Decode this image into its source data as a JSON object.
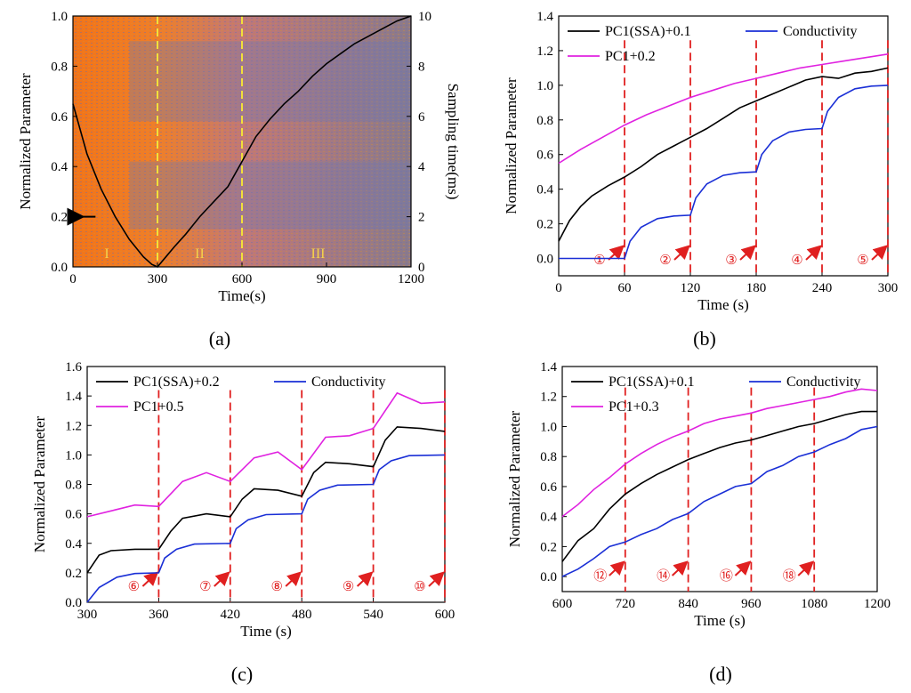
{
  "chart_data": [
    {
      "panel": "(a)",
      "type": "heatmap",
      "xlabel": "Time(s)",
      "ylabel": "Normalized Parameter",
      "y2label": "Sampling time(ms)",
      "xlim": [
        0,
        1200
      ],
      "ylim": [
        0,
        1.0
      ],
      "y2lim": [
        0,
        10
      ],
      "xticks": [
        0,
        300,
        600,
        900,
        1200
      ],
      "yticks": [
        0.0,
        0.2,
        0.4,
        0.6,
        0.8,
        1.0
      ],
      "y2ticks": [
        0,
        2,
        4,
        6,
        8,
        10
      ],
      "dashed_vlines": [
        300,
        600
      ],
      "regions": [
        {
          "label": "I",
          "x": 120
        },
        {
          "label": "II",
          "x": 450
        },
        {
          "label": "III",
          "x": 870
        }
      ],
      "series": [
        {
          "name": "Normalized Parameter",
          "x": [
            0,
            50,
            100,
            150,
            200,
            250,
            280,
            300,
            330,
            360,
            400,
            450,
            500,
            550,
            600,
            650,
            700,
            750,
            800,
            850,
            900,
            950,
            1000,
            1050,
            1100,
            1150,
            1200
          ],
          "values": [
            0.65,
            0.45,
            0.31,
            0.2,
            0.11,
            0.04,
            0.01,
            0.0,
            0.04,
            0.08,
            0.13,
            0.2,
            0.26,
            0.32,
            0.42,
            0.52,
            0.59,
            0.65,
            0.7,
            0.76,
            0.81,
            0.85,
            0.89,
            0.92,
            0.95,
            0.98,
            1.0
          ]
        }
      ]
    },
    {
      "panel": "(b)",
      "type": "line",
      "xlabel": "Time (s)",
      "ylabel": "Normalized Parameter",
      "xlim": [
        0,
        300
      ],
      "ylim": [
        -0.1,
        1.4
      ],
      "xticks": [
        0,
        60,
        120,
        180,
        240,
        300
      ],
      "yticks": [
        0.0,
        0.2,
        0.4,
        0.6,
        0.8,
        1.0,
        1.2,
        1.4
      ],
      "legend": [
        "PC1(SSA)+0.1",
        "Conductivity",
        "PC1+0.2"
      ],
      "dashed_vlines": [
        60,
        120,
        180,
        240,
        300
      ],
      "markers": [
        "①",
        "②",
        "③",
        "④",
        "⑤"
      ],
      "series": [
        {
          "name": "PC1(SSA)+0.1",
          "x": [
            0,
            10,
            20,
            30,
            45,
            60,
            75,
            90,
            105,
            120,
            135,
            150,
            165,
            180,
            195,
            210,
            225,
            240,
            255,
            270,
            285,
            300
          ],
          "values": [
            0.1,
            0.22,
            0.3,
            0.36,
            0.42,
            0.47,
            0.53,
            0.6,
            0.65,
            0.7,
            0.75,
            0.81,
            0.87,
            0.91,
            0.95,
            0.99,
            1.03,
            1.05,
            1.04,
            1.07,
            1.08,
            1.1
          ]
        },
        {
          "name": "Conductivity",
          "x": [
            0,
            60,
            65,
            75,
            90,
            105,
            120,
            125,
            135,
            150,
            165,
            180,
            185,
            195,
            210,
            225,
            240,
            245,
            255,
            270,
            285,
            300
          ],
          "values": [
            0.0,
            0.0,
            0.1,
            0.18,
            0.23,
            0.245,
            0.25,
            0.35,
            0.43,
            0.48,
            0.495,
            0.5,
            0.6,
            0.68,
            0.73,
            0.745,
            0.75,
            0.85,
            0.93,
            0.98,
            0.995,
            1.0
          ]
        },
        {
          "name": "PC1+0.2",
          "x": [
            0,
            20,
            40,
            60,
            80,
            100,
            120,
            140,
            160,
            180,
            200,
            220,
            240,
            260,
            280,
            300
          ],
          "values": [
            0.55,
            0.63,
            0.7,
            0.77,
            0.83,
            0.88,
            0.93,
            0.97,
            1.01,
            1.04,
            1.07,
            1.1,
            1.12,
            1.14,
            1.16,
            1.18
          ]
        }
      ]
    },
    {
      "panel": "(c)",
      "type": "line",
      "xlabel": "Time (s)",
      "ylabel": "Normalized Parameter",
      "xlim": [
        300,
        600
      ],
      "ylim": [
        0.0,
        1.6
      ],
      "xticks": [
        300,
        360,
        420,
        480,
        540,
        600
      ],
      "yticks": [
        0.0,
        0.2,
        0.4,
        0.6,
        0.8,
        1.0,
        1.2,
        1.4,
        1.6
      ],
      "legend": [
        "PC1(SSA)+0.2",
        "Conductivity",
        "PC1+0.5"
      ],
      "dashed_vlines": [
        360,
        420,
        480,
        540,
        600
      ],
      "markers": [
        "⑥",
        "⑦",
        "⑧",
        "⑨",
        "⑩"
      ],
      "series": [
        {
          "name": "PC1(SSA)+0.2",
          "x": [
            300,
            310,
            320,
            340,
            360,
            370,
            380,
            400,
            420,
            430,
            440,
            460,
            480,
            490,
            500,
            520,
            540,
            550,
            560,
            580,
            600
          ],
          "values": [
            0.2,
            0.32,
            0.35,
            0.36,
            0.36,
            0.48,
            0.57,
            0.6,
            0.58,
            0.7,
            0.77,
            0.76,
            0.72,
            0.88,
            0.95,
            0.94,
            0.92,
            1.1,
            1.19,
            1.18,
            1.16
          ]
        },
        {
          "name": "Conductivity",
          "x": [
            300,
            310,
            325,
            340,
            360,
            365,
            375,
            390,
            420,
            425,
            435,
            450,
            480,
            485,
            495,
            510,
            540,
            545,
            555,
            570,
            600
          ],
          "values": [
            0.0,
            0.1,
            0.17,
            0.195,
            0.2,
            0.3,
            0.36,
            0.395,
            0.4,
            0.5,
            0.56,
            0.595,
            0.6,
            0.7,
            0.76,
            0.795,
            0.8,
            0.9,
            0.96,
            0.995,
            1.0
          ]
        },
        {
          "name": "PC1+0.5",
          "x": [
            300,
            320,
            340,
            360,
            380,
            400,
            420,
            440,
            460,
            480,
            500,
            520,
            540,
            560,
            580,
            600
          ],
          "values": [
            0.58,
            0.62,
            0.66,
            0.65,
            0.82,
            0.88,
            0.82,
            0.98,
            1.02,
            0.9,
            1.12,
            1.13,
            1.18,
            1.42,
            1.35,
            1.36
          ]
        }
      ]
    },
    {
      "panel": "(d)",
      "type": "line",
      "xlabel": "Time (s)",
      "ylabel": "Normalized Parameter",
      "xlim": [
        600,
        1200
      ],
      "ylim": [
        -0.1,
        1.4
      ],
      "xticks": [
        600,
        720,
        840,
        960,
        1080,
        1200
      ],
      "yticks": [
        0.0,
        0.2,
        0.4,
        0.6,
        0.8,
        1.0,
        1.2,
        1.4
      ],
      "legend": [
        "PC1(SSA)+0.1",
        "Conductivity",
        "PC1+0.3"
      ],
      "dashed_vlines": [
        720,
        840,
        960,
        1080
      ],
      "markers": [
        "⑫",
        "⑭",
        "⑯",
        "⑱"
      ],
      "series": [
        {
          "name": "PC1(SSA)+0.1",
          "x": [
            600,
            630,
            660,
            690,
            720,
            750,
            780,
            810,
            840,
            870,
            900,
            930,
            960,
            990,
            1020,
            1050,
            1080,
            1110,
            1140,
            1170,
            1200
          ],
          "values": [
            0.1,
            0.24,
            0.32,
            0.45,
            0.55,
            0.62,
            0.68,
            0.73,
            0.78,
            0.82,
            0.86,
            0.89,
            0.91,
            0.94,
            0.97,
            1.0,
            1.02,
            1.05,
            1.08,
            1.1,
            1.1
          ]
        },
        {
          "name": "Conductivity",
          "x": [
            600,
            630,
            660,
            690,
            720,
            750,
            780,
            810,
            840,
            870,
            900,
            930,
            960,
            990,
            1020,
            1050,
            1080,
            1110,
            1140,
            1170,
            1200
          ],
          "values": [
            0.0,
            0.05,
            0.12,
            0.2,
            0.23,
            0.28,
            0.32,
            0.38,
            0.42,
            0.5,
            0.55,
            0.6,
            0.62,
            0.7,
            0.74,
            0.8,
            0.83,
            0.88,
            0.92,
            0.98,
            1.0
          ]
        },
        {
          "name": "PC1+0.3",
          "x": [
            600,
            630,
            660,
            690,
            720,
            750,
            780,
            810,
            840,
            870,
            900,
            930,
            960,
            990,
            1020,
            1050,
            1080,
            1110,
            1140,
            1170,
            1200
          ],
          "values": [
            0.4,
            0.48,
            0.58,
            0.66,
            0.75,
            0.82,
            0.88,
            0.93,
            0.97,
            1.02,
            1.05,
            1.07,
            1.09,
            1.12,
            1.14,
            1.16,
            1.18,
            1.2,
            1.23,
            1.25,
            1.24
          ]
        }
      ]
    }
  ],
  "colors": {
    "pc1_ssa": "#000000",
    "conductivity": "#1a2fd6",
    "pc1": "#e022e0",
    "dashed_marker": "#e02020",
    "heatmap_yellow_line": "#f2e03a",
    "heatmap_base": "#f07a1c"
  }
}
